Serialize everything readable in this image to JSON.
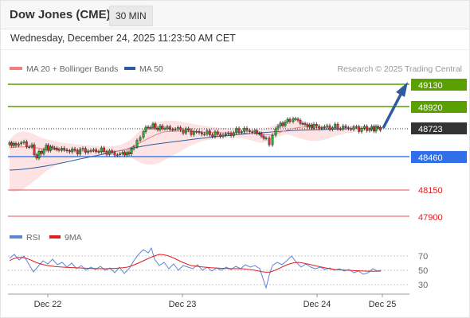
{
  "header": {
    "title": "Dow Jones (CME)",
    "interval": "30 MIN",
    "datetime": "Wednesday, December 24, 2025 11:23:50 AM CET"
  },
  "legend": {
    "ma20_label": "MA 20 + Bollinger Bands",
    "ma50_label": "MA 50",
    "credit": "Research © 2025 Trading Central",
    "colors": {
      "ma20": "#f08080",
      "ma50": "#2e5c9e",
      "bands_fill": "#fde0e0"
    }
  },
  "levels": [
    {
      "value": "49130",
      "kind": "resistance",
      "color": "#5aa000",
      "label_bg": "#5aa000"
    },
    {
      "value": "48920",
      "kind": "resistance",
      "color": "#5aa000",
      "label_bg": "#5aa000"
    },
    {
      "value": "48723",
      "kind": "last-price",
      "color": "#333333",
      "label_bg": "#333333"
    },
    {
      "value": "48460",
      "kind": "pivot",
      "color": "#3f7de8",
      "label_bg": "#2f6fe8"
    },
    {
      "value": "48150",
      "kind": "support",
      "color": "#e05050",
      "label_bg": "none"
    },
    {
      "value": "47900",
      "kind": "support",
      "color": "#e05050",
      "label_bg": "none"
    }
  ],
  "rsi": {
    "rsi_label": "RSI",
    "ma_label": "9MA",
    "colors": {
      "rsi": "#5b86d6",
      "ma": "#e02020"
    },
    "ticks": [
      "70",
      "50",
      "30"
    ]
  },
  "xaxis": {
    "ticks": [
      "Dec 22",
      "Dec 23",
      "Dec 24",
      "Dec 25"
    ]
  }
}
